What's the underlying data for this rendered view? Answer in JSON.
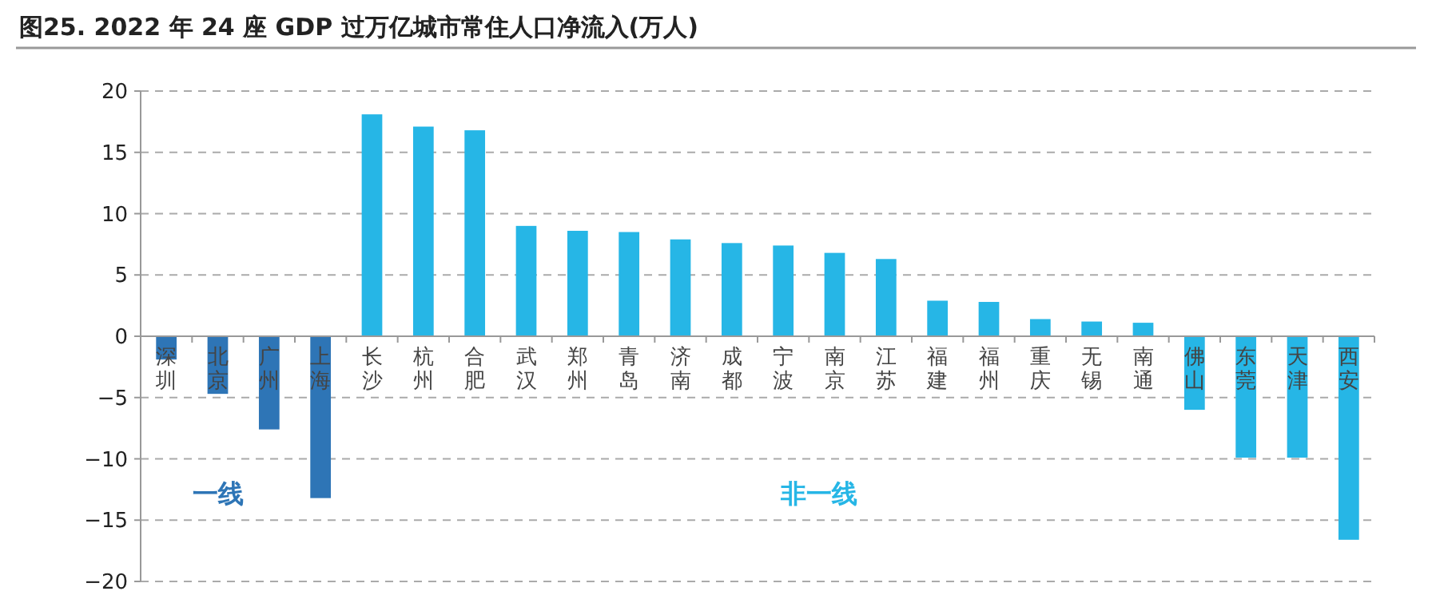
{
  "chart_data": {
    "type": "bar",
    "title": "图25. 2022 年 24 座 GDP 过万亿城市常住人口净流入(万人)",
    "categories": [
      "深圳",
      "北京",
      "广州",
      "上海",
      "长沙",
      "杭州",
      "合肥",
      "武汉",
      "郑州",
      "青岛",
      "济南",
      "成都",
      "宁波",
      "南京",
      "江苏",
      "福建",
      "福州",
      "重庆",
      "无锡",
      "南通",
      "佛山",
      "东莞",
      "天津",
      "西安"
    ],
    "values": [
      -1.9,
      -4.7,
      -7.6,
      -13.2,
      18.1,
      17.1,
      16.8,
      9.0,
      8.6,
      8.5,
      7.9,
      7.6,
      7.4,
      6.8,
      6.3,
      2.9,
      2.8,
      1.4,
      1.2,
      1.1,
      -6.0,
      -9.9,
      -9.9,
      -16.6
    ],
    "colors": [
      "#2e75b6",
      "#2e75b6",
      "#2e75b6",
      "#2e75b6",
      "#26b6e6",
      "#26b6e6",
      "#26b6e6",
      "#26b6e6",
      "#26b6e6",
      "#26b6e6",
      "#26b6e6",
      "#26b6e6",
      "#26b6e6",
      "#26b6e6",
      "#26b6e6",
      "#26b6e6",
      "#26b6e6",
      "#26b6e6",
      "#26b6e6",
      "#26b6e6",
      "#26b6e6",
      "#26b6e6",
      "#26b6e6",
      "#26b6e6"
    ],
    "annotations": [
      "一线",
      "非一线"
    ],
    "ylim": [
      -20,
      20
    ],
    "yticks": [
      -20,
      -15,
      -10,
      -5,
      0,
      5,
      10,
      15,
      20
    ],
    "grid": "y"
  }
}
